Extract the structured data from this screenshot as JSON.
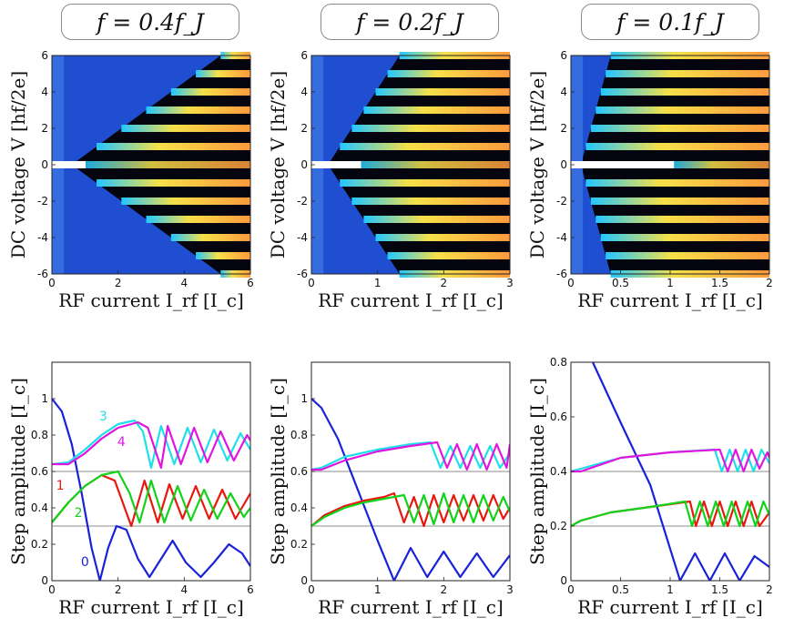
{
  "figure": {
    "panel_titles": [
      "f = 0.4f_J",
      "f = 0.2f_J",
      "f = 0.1f_J"
    ],
    "top_xlabel": "RF current I_rf   [I_c]",
    "top_ylabel": "DC voltage V   [hf/2e]",
    "bottom_xlabel": "RF current I_rf   [I_c]",
    "bottom_ylabel": "Step amplitude [I_c]"
  },
  "chart_data": [
    {
      "type": "heatmap",
      "title": "f = 0.4f_J",
      "xlabel": "RF current I_rf [I_c]",
      "ylabel": "DC voltage V [hf/2e]",
      "xlim": [
        0,
        6
      ],
      "ylim": [
        -6,
        6
      ],
      "xticks": [
        0,
        2,
        4,
        6
      ],
      "yticks": [
        -6,
        -4,
        -2,
        0,
        2,
        4,
        6
      ],
      "steps": [
        -6,
        -5,
        -4,
        -3,
        -2,
        -1,
        0,
        1,
        2,
        3,
        4,
        5,
        6
      ],
      "edge_slope": 0.75,
      "edge_offset": 0.6
    },
    {
      "type": "heatmap",
      "title": "f = 0.2f_J",
      "xlabel": "RF current I_rf [I_c]",
      "ylabel": "DC voltage V [hf/2e]",
      "xlim": [
        0,
        3
      ],
      "ylim": [
        -6,
        6
      ],
      "xticks": [
        0,
        1,
        2,
        3
      ],
      "yticks": [
        -6,
        -4,
        -2,
        0,
        2,
        4,
        6
      ],
      "steps": [
        -6,
        -5,
        -4,
        -3,
        -2,
        -1,
        0,
        1,
        2,
        3,
        4,
        5,
        6
      ],
      "edge_slope": 0.18,
      "edge_offset": 0.25
    },
    {
      "type": "heatmap",
      "title": "f = 0.1f_J",
      "xlabel": "RF current I_rf [I_c]",
      "ylabel": "DC voltage V [hf/2e]",
      "xlim": [
        0,
        2
      ],
      "ylim": [
        -6,
        6
      ],
      "xticks": [
        0,
        0.5,
        1,
        1.5,
        2
      ],
      "yticks": [
        -6,
        -4,
        -2,
        0,
        2,
        4,
        6
      ],
      "steps": [
        -6,
        -5,
        -4,
        -3,
        -2,
        -1,
        0,
        1,
        2,
        3,
        4,
        5,
        6
      ],
      "edge_slope": 0.05,
      "edge_offset": 0.1
    },
    {
      "type": "line",
      "title": "f = 0.4f_J",
      "xlabel": "RF current I_rf [I_c]",
      "ylabel": "Step amplitude [I_c]",
      "xlim": [
        0,
        6
      ],
      "ylim": [
        0,
        1.2
      ],
      "xticks": [
        0,
        2,
        4,
        6
      ],
      "yticks": [
        0,
        0.2,
        0.4,
        0.6,
        0.8,
        1
      ],
      "hlines": [
        0.3,
        0.6
      ],
      "series": [
        {
          "name": "0",
          "color": "#1a22d8",
          "x": [
            0,
            0.3,
            0.6,
            0.9,
            1.2,
            1.45,
            1.7,
            1.95,
            2.25,
            2.6,
            2.95,
            3.3,
            3.65,
            4.05,
            4.5,
            4.9,
            5.35,
            5.75,
            6.0
          ],
          "y": [
            1.0,
            0.93,
            0.75,
            0.48,
            0.18,
            0.0,
            0.18,
            0.3,
            0.28,
            0.12,
            0.02,
            0.12,
            0.22,
            0.1,
            0.02,
            0.1,
            0.2,
            0.15,
            0.08
          ]
        },
        {
          "name": "1",
          "color": "#e8180e",
          "x": [
            0,
            0.5,
            1.0,
            1.5,
            1.9,
            2.1,
            2.4,
            2.8,
            3.2,
            3.55,
            3.95,
            4.35,
            4.75,
            5.15,
            5.55,
            6.0
          ],
          "y": [
            0.32,
            0.43,
            0.52,
            0.58,
            0.55,
            0.45,
            0.3,
            0.55,
            0.32,
            0.53,
            0.34,
            0.52,
            0.34,
            0.5,
            0.34,
            0.48
          ]
        },
        {
          "name": "2",
          "color": "#12d31a",
          "x": [
            0,
            0.5,
            1.0,
            1.5,
            2.0,
            2.35,
            2.65,
            3.0,
            3.4,
            3.8,
            4.2,
            4.6,
            5.0,
            5.4,
            5.8,
            6.0
          ],
          "y": [
            0.32,
            0.43,
            0.52,
            0.58,
            0.6,
            0.48,
            0.32,
            0.55,
            0.32,
            0.52,
            0.33,
            0.5,
            0.34,
            0.48,
            0.35,
            0.4
          ]
        },
        {
          "name": "3",
          "color": "#1ee0e8",
          "x": [
            0,
            0.5,
            1.0,
            1.5,
            2.0,
            2.5,
            2.75,
            3.0,
            3.3,
            3.7,
            4.1,
            4.5,
            4.9,
            5.3,
            5.7,
            6.0
          ],
          "y": [
            0.64,
            0.65,
            0.72,
            0.8,
            0.86,
            0.88,
            0.82,
            0.62,
            0.85,
            0.64,
            0.84,
            0.65,
            0.83,
            0.66,
            0.81,
            0.72
          ]
        },
        {
          "name": "4",
          "color": "#e016e0",
          "x": [
            0,
            0.5,
            1.0,
            1.5,
            2.0,
            2.6,
            2.9,
            3.3,
            3.5,
            3.9,
            4.3,
            4.7,
            5.1,
            5.5,
            5.9,
            6.0
          ],
          "y": [
            0.64,
            0.64,
            0.7,
            0.78,
            0.84,
            0.87,
            0.84,
            0.62,
            0.85,
            0.64,
            0.84,
            0.65,
            0.82,
            0.66,
            0.8,
            0.77
          ]
        }
      ],
      "annotations": [
        {
          "text": "0",
          "x": 1.0,
          "y": 0.08,
          "color": "#1a22d8"
        },
        {
          "text": "1",
          "x": 0.25,
          "y": 0.5,
          "color": "#e8180e"
        },
        {
          "text": "2",
          "x": 0.8,
          "y": 0.35,
          "color": "#12d31a"
        },
        {
          "text": "3",
          "x": 1.55,
          "y": 0.88,
          "color": "#1ee0e8"
        },
        {
          "text": "4",
          "x": 2.1,
          "y": 0.74,
          "color": "#e016e0"
        }
      ]
    },
    {
      "type": "line",
      "title": "f = 0.2f_J",
      "xlabel": "RF current I_rf [I_c]",
      "ylabel": "Step amplitude [I_c]",
      "xlim": [
        0,
        3
      ],
      "ylim": [
        0,
        1.2
      ],
      "xticks": [
        0,
        1,
        2,
        3
      ],
      "yticks": [
        0,
        0.2,
        0.4,
        0.6,
        0.8,
        1
      ],
      "hlines": [
        0.3,
        0.6
      ],
      "series": [
        {
          "name": "0",
          "color": "#1a22d8",
          "x": [
            0,
            0.15,
            0.4,
            0.7,
            1.0,
            1.25,
            1.5,
            1.75,
            2.0,
            2.25,
            2.5,
            2.75,
            3.0
          ],
          "y": [
            1.0,
            0.95,
            0.78,
            0.5,
            0.22,
            0.0,
            0.18,
            0.02,
            0.16,
            0.02,
            0.15,
            0.02,
            0.14
          ]
        },
        {
          "name": "1",
          "color": "#e8180e",
          "x": [
            0,
            0.2,
            0.5,
            0.8,
            1.1,
            1.25,
            1.4,
            1.55,
            1.7,
            1.85,
            2.0,
            2.15,
            2.3,
            2.45,
            2.6,
            2.75,
            2.9,
            3.0
          ],
          "y": [
            0.3,
            0.36,
            0.41,
            0.44,
            0.46,
            0.48,
            0.32,
            0.46,
            0.3,
            0.47,
            0.32,
            0.47,
            0.33,
            0.47,
            0.33,
            0.47,
            0.34,
            0.4
          ]
        },
        {
          "name": "2",
          "color": "#12d31a",
          "x": [
            0,
            0.2,
            0.5,
            0.8,
            1.1,
            1.4,
            1.55,
            1.7,
            1.85,
            2.0,
            2.15,
            2.3,
            2.45,
            2.6,
            2.75,
            2.9,
            3.0
          ],
          "y": [
            0.3,
            0.35,
            0.4,
            0.43,
            0.45,
            0.47,
            0.32,
            0.47,
            0.31,
            0.48,
            0.32,
            0.47,
            0.32,
            0.47,
            0.33,
            0.46,
            0.38
          ]
        },
        {
          "name": "3",
          "color": "#1ee0e8",
          "x": [
            0,
            0.15,
            0.5,
            1.0,
            1.5,
            1.8,
            1.95,
            2.1,
            2.25,
            2.4,
            2.55,
            2.7,
            2.85,
            3.0
          ],
          "y": [
            0.61,
            0.62,
            0.68,
            0.72,
            0.75,
            0.76,
            0.62,
            0.74,
            0.62,
            0.74,
            0.62,
            0.74,
            0.62,
            0.7
          ]
        },
        {
          "name": "4",
          "color": "#e016e0",
          "x": [
            0,
            0.15,
            0.5,
            1.0,
            1.5,
            1.9,
            2.05,
            2.2,
            2.35,
            2.5,
            2.65,
            2.8,
            2.95,
            3.0
          ],
          "y": [
            0.61,
            0.61,
            0.66,
            0.71,
            0.74,
            0.76,
            0.62,
            0.75,
            0.61,
            0.75,
            0.61,
            0.75,
            0.62,
            0.75
          ]
        }
      ]
    },
    {
      "type": "line",
      "title": "f = 0.1f_J",
      "xlabel": "RF current I_rf [I_c]",
      "ylabel": "Step amplitude [I_c]",
      "xlim": [
        0,
        2
      ],
      "ylim": [
        0,
        0.8
      ],
      "xticks": [
        0,
        0.5,
        1,
        1.5,
        2
      ],
      "yticks": [
        0,
        0.2,
        0.4,
        0.6,
        0.8
      ],
      "hlines": [
        0.2,
        0.4
      ],
      "series": [
        {
          "name": "0",
          "color": "#1a22d8",
          "x": [
            0.22,
            0.5,
            0.8,
            1.1,
            1.25,
            1.4,
            1.55,
            1.7,
            1.85,
            2.0
          ],
          "y": [
            0.8,
            0.58,
            0.35,
            0.0,
            0.1,
            0.0,
            0.1,
            0.0,
            0.09,
            0.05
          ]
        },
        {
          "name": "1",
          "color": "#e8180e",
          "x": [
            0,
            0.1,
            0.4,
            0.8,
            1.2,
            1.26,
            1.34,
            1.42,
            1.5,
            1.58,
            1.66,
            1.74,
            1.82,
            1.9,
            2.0
          ],
          "y": [
            0.2,
            0.22,
            0.25,
            0.27,
            0.29,
            0.2,
            0.29,
            0.2,
            0.29,
            0.2,
            0.29,
            0.2,
            0.29,
            0.2,
            0.25
          ]
        },
        {
          "name": "2",
          "color": "#12d31a",
          "x": [
            0,
            0.1,
            0.4,
            0.8,
            1.15,
            1.22,
            1.3,
            1.38,
            1.46,
            1.54,
            1.62,
            1.7,
            1.78,
            1.86,
            1.94,
            2.0
          ],
          "y": [
            0.2,
            0.22,
            0.25,
            0.27,
            0.29,
            0.2,
            0.29,
            0.2,
            0.29,
            0.2,
            0.29,
            0.2,
            0.29,
            0.2,
            0.29,
            0.24
          ]
        },
        {
          "name": "3",
          "color": "#1ee0e8",
          "x": [
            0,
            0.1,
            0.5,
            1.0,
            1.45,
            1.52,
            1.6,
            1.68,
            1.76,
            1.84,
            1.92,
            2.0
          ],
          "y": [
            0.4,
            0.41,
            0.45,
            0.47,
            0.48,
            0.4,
            0.48,
            0.4,
            0.48,
            0.4,
            0.48,
            0.43
          ]
        },
        {
          "name": "4",
          "color": "#e016e0",
          "x": [
            0,
            0.1,
            0.5,
            1.0,
            1.5,
            1.58,
            1.66,
            1.74,
            1.82,
            1.9,
            1.98,
            2.0
          ],
          "y": [
            0.4,
            0.4,
            0.45,
            0.47,
            0.48,
            0.4,
            0.48,
            0.4,
            0.48,
            0.41,
            0.47,
            0.45
          ]
        }
      ]
    }
  ]
}
